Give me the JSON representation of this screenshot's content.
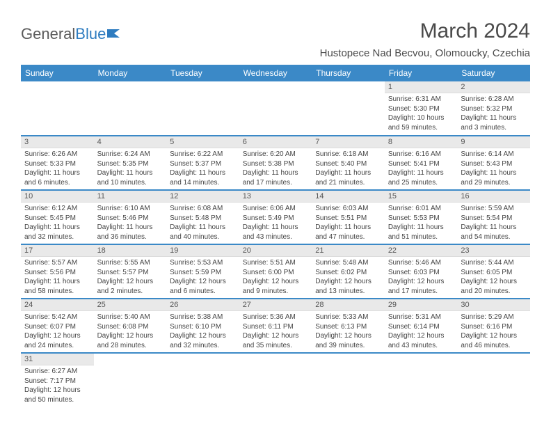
{
  "brand": {
    "part1": "General",
    "part2": "Blue"
  },
  "title": "March 2024",
  "location": "Hustopece Nad Becvou, Olomoucky, Czechia",
  "header_bg": "#3b89c7",
  "header_fg": "#ffffff",
  "daynum_bg": "#e9e9e9",
  "divider_color": "#3b89c7",
  "days": [
    "Sunday",
    "Monday",
    "Tuesday",
    "Wednesday",
    "Thursday",
    "Friday",
    "Saturday"
  ],
  "weeks": [
    [
      null,
      null,
      null,
      null,
      null,
      {
        "n": "1",
        "sr": "6:31 AM",
        "ss": "5:30 PM",
        "dl": "10 hours and 59 minutes."
      },
      {
        "n": "2",
        "sr": "6:28 AM",
        "ss": "5:32 PM",
        "dl": "11 hours and 3 minutes."
      }
    ],
    [
      {
        "n": "3",
        "sr": "6:26 AM",
        "ss": "5:33 PM",
        "dl": "11 hours and 6 minutes."
      },
      {
        "n": "4",
        "sr": "6:24 AM",
        "ss": "5:35 PM",
        "dl": "11 hours and 10 minutes."
      },
      {
        "n": "5",
        "sr": "6:22 AM",
        "ss": "5:37 PM",
        "dl": "11 hours and 14 minutes."
      },
      {
        "n": "6",
        "sr": "6:20 AM",
        "ss": "5:38 PM",
        "dl": "11 hours and 17 minutes."
      },
      {
        "n": "7",
        "sr": "6:18 AM",
        "ss": "5:40 PM",
        "dl": "11 hours and 21 minutes."
      },
      {
        "n": "8",
        "sr": "6:16 AM",
        "ss": "5:41 PM",
        "dl": "11 hours and 25 minutes."
      },
      {
        "n": "9",
        "sr": "6:14 AM",
        "ss": "5:43 PM",
        "dl": "11 hours and 29 minutes."
      }
    ],
    [
      {
        "n": "10",
        "sr": "6:12 AM",
        "ss": "5:45 PM",
        "dl": "11 hours and 32 minutes."
      },
      {
        "n": "11",
        "sr": "6:10 AM",
        "ss": "5:46 PM",
        "dl": "11 hours and 36 minutes."
      },
      {
        "n": "12",
        "sr": "6:08 AM",
        "ss": "5:48 PM",
        "dl": "11 hours and 40 minutes."
      },
      {
        "n": "13",
        "sr": "6:06 AM",
        "ss": "5:49 PM",
        "dl": "11 hours and 43 minutes."
      },
      {
        "n": "14",
        "sr": "6:03 AM",
        "ss": "5:51 PM",
        "dl": "11 hours and 47 minutes."
      },
      {
        "n": "15",
        "sr": "6:01 AM",
        "ss": "5:53 PM",
        "dl": "11 hours and 51 minutes."
      },
      {
        "n": "16",
        "sr": "5:59 AM",
        "ss": "5:54 PM",
        "dl": "11 hours and 54 minutes."
      }
    ],
    [
      {
        "n": "17",
        "sr": "5:57 AM",
        "ss": "5:56 PM",
        "dl": "11 hours and 58 minutes."
      },
      {
        "n": "18",
        "sr": "5:55 AM",
        "ss": "5:57 PM",
        "dl": "12 hours and 2 minutes."
      },
      {
        "n": "19",
        "sr": "5:53 AM",
        "ss": "5:59 PM",
        "dl": "12 hours and 6 minutes."
      },
      {
        "n": "20",
        "sr": "5:51 AM",
        "ss": "6:00 PM",
        "dl": "12 hours and 9 minutes."
      },
      {
        "n": "21",
        "sr": "5:48 AM",
        "ss": "6:02 PM",
        "dl": "12 hours and 13 minutes."
      },
      {
        "n": "22",
        "sr": "5:46 AM",
        "ss": "6:03 PM",
        "dl": "12 hours and 17 minutes."
      },
      {
        "n": "23",
        "sr": "5:44 AM",
        "ss": "6:05 PM",
        "dl": "12 hours and 20 minutes."
      }
    ],
    [
      {
        "n": "24",
        "sr": "5:42 AM",
        "ss": "6:07 PM",
        "dl": "12 hours and 24 minutes."
      },
      {
        "n": "25",
        "sr": "5:40 AM",
        "ss": "6:08 PM",
        "dl": "12 hours and 28 minutes."
      },
      {
        "n": "26",
        "sr": "5:38 AM",
        "ss": "6:10 PM",
        "dl": "12 hours and 32 minutes."
      },
      {
        "n": "27",
        "sr": "5:36 AM",
        "ss": "6:11 PM",
        "dl": "12 hours and 35 minutes."
      },
      {
        "n": "28",
        "sr": "5:33 AM",
        "ss": "6:13 PM",
        "dl": "12 hours and 39 minutes."
      },
      {
        "n": "29",
        "sr": "5:31 AM",
        "ss": "6:14 PM",
        "dl": "12 hours and 43 minutes."
      },
      {
        "n": "30",
        "sr": "5:29 AM",
        "ss": "6:16 PM",
        "dl": "12 hours and 46 minutes."
      }
    ],
    [
      {
        "n": "31",
        "sr": "6:27 AM",
        "ss": "7:17 PM",
        "dl": "12 hours and 50 minutes."
      },
      null,
      null,
      null,
      null,
      null,
      null
    ]
  ],
  "labels": {
    "sunrise": "Sunrise:",
    "sunset": "Sunset:",
    "daylight": "Daylight:"
  }
}
